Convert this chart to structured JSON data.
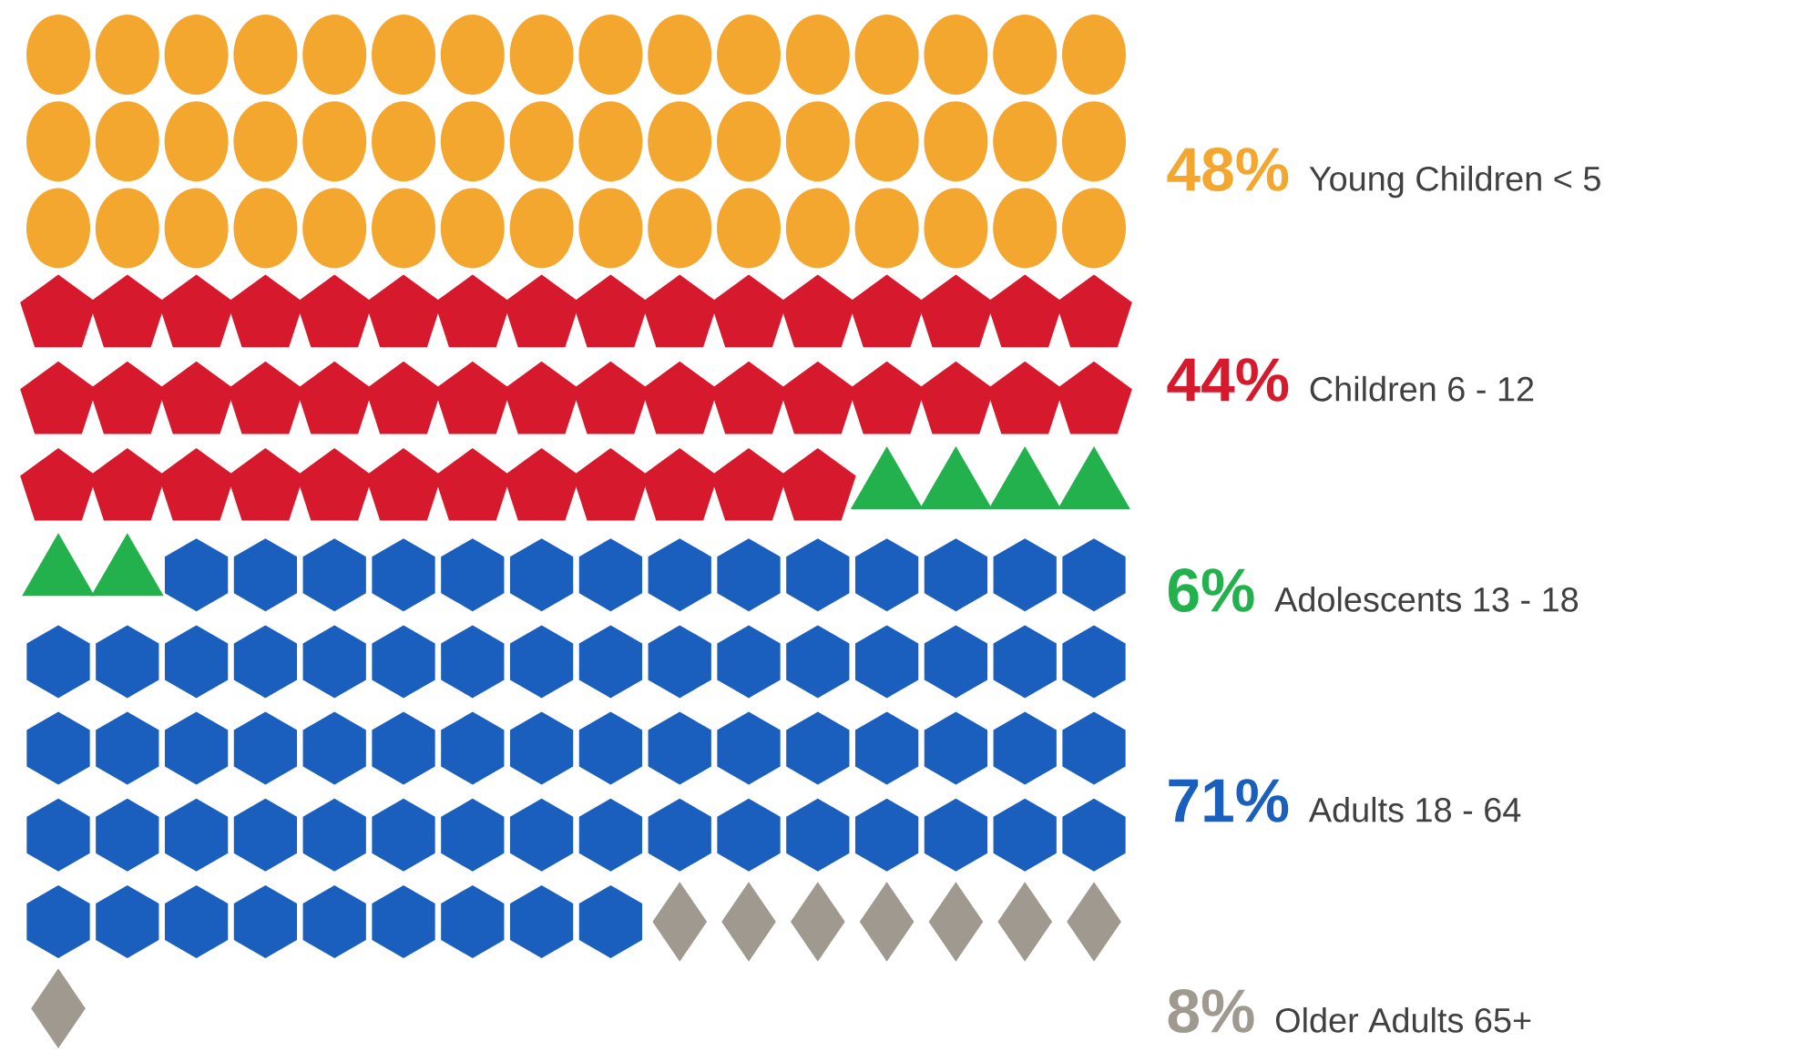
{
  "chart_data": {
    "type": "other",
    "categories": [
      "Young Children < 5",
      "Children 6 - 12",
      "Adolescents 13 - 18",
      "Adults 18 - 64",
      "Older Adults 65+"
    ],
    "values": [
      48,
      44,
      6,
      71,
      8
    ],
    "value_labels": [
      "48%",
      "44%",
      "6%",
      "71%",
      "8%"
    ],
    "colors": [
      "#f3a72e",
      "#d7192d",
      "#22b14c",
      "#1a5fbe",
      "#a0998f"
    ]
  }
}
